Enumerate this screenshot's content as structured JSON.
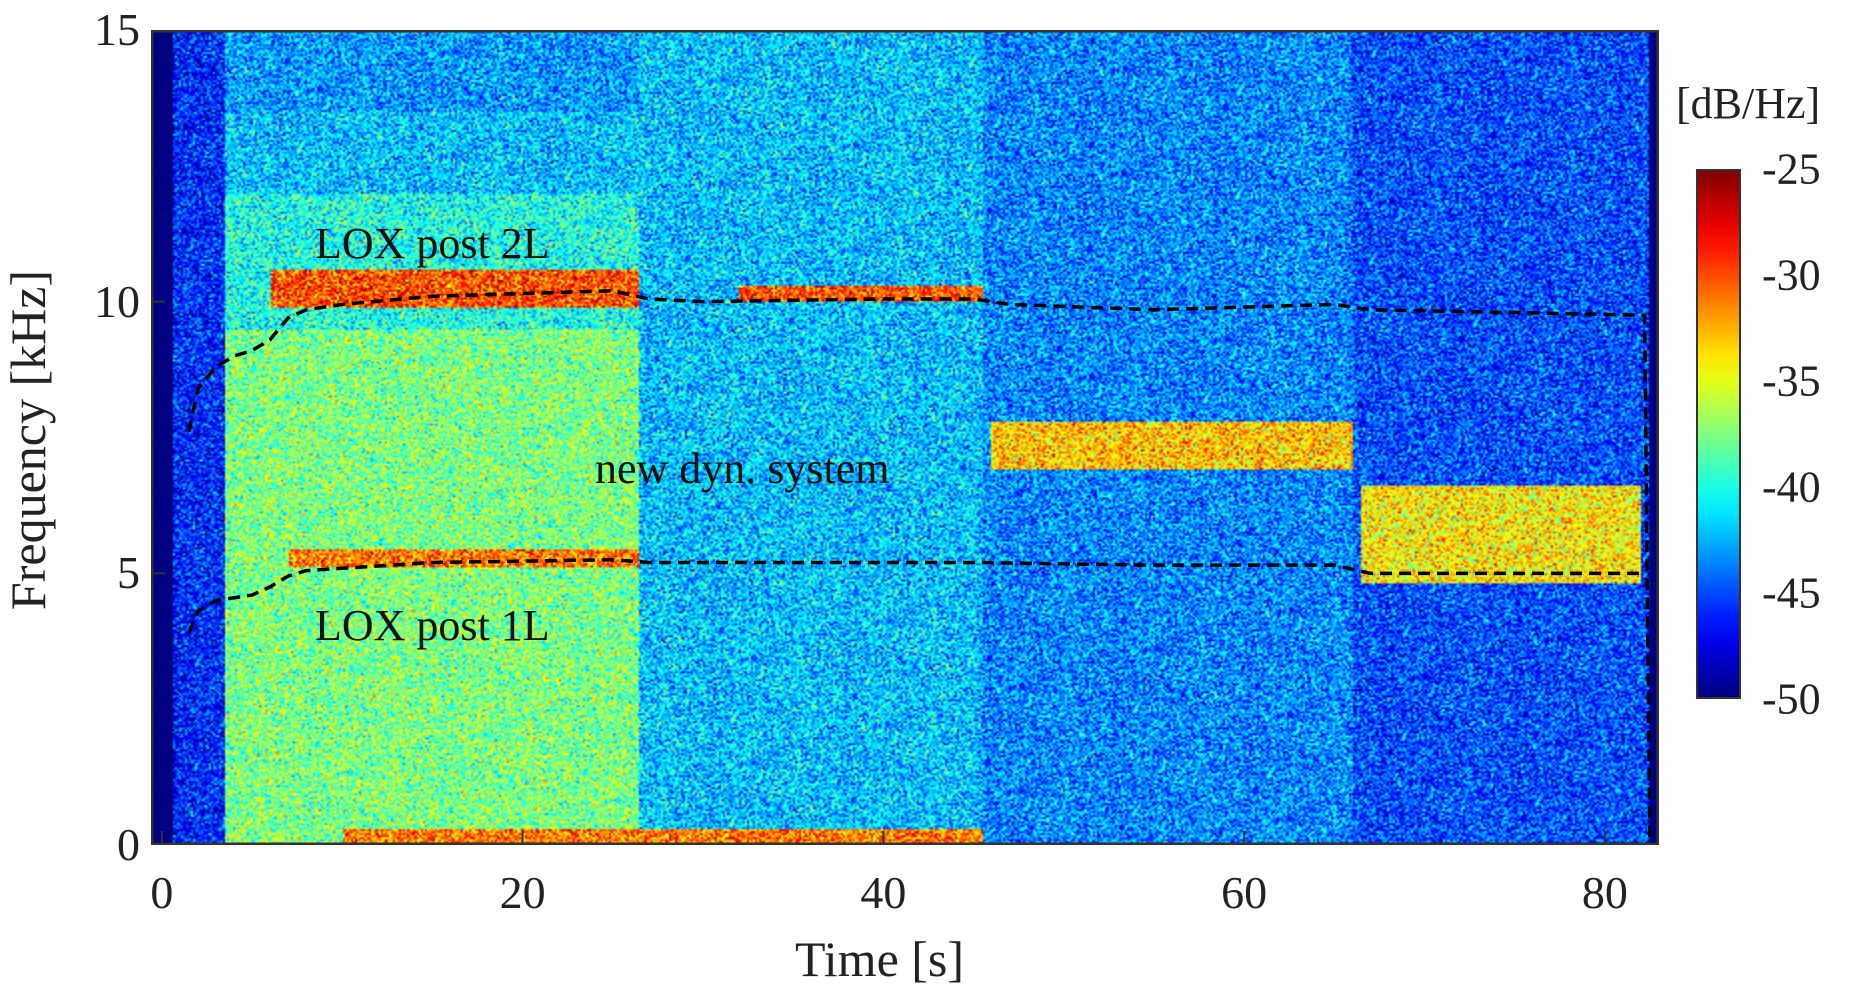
{
  "chart_data": {
    "type": "heatmap",
    "title": "",
    "xlabel": "Time [s]",
    "ylabel": "Frequency [kHz]",
    "xlim": [
      -0.6,
      83
    ],
    "ylim": [
      0,
      15
    ],
    "xticks": [
      0,
      20,
      40,
      60,
      80
    ],
    "xtick_labels": [
      "0",
      "20",
      "40",
      "60",
      "80"
    ],
    "yticks": [
      0,
      5,
      10,
      15
    ],
    "ytick_labels": [
      "0",
      "5",
      "10",
      "15"
    ],
    "colorbar": {
      "label": "[dB/Hz]",
      "colormap": "jet",
      "range": [
        -50,
        -25
      ],
      "ticks": [
        -25,
        -30,
        -35,
        -40,
        -45,
        -50
      ],
      "tick_labels": [
        "-25",
        "-30",
        "-35",
        "-40",
        "-45",
        "-50"
      ]
    },
    "series": [
      {
        "name": "LOX post 2L (dashed)",
        "color": "#000000",
        "points": [
          [
            1.5,
            7.6
          ],
          [
            2,
            8.4
          ],
          [
            3,
            8.8
          ],
          [
            4,
            9.0
          ],
          [
            5,
            9.1
          ],
          [
            6,
            9.3
          ],
          [
            7,
            9.7
          ],
          [
            8,
            9.85
          ],
          [
            10,
            9.95
          ],
          [
            15,
            10.1
          ],
          [
            20,
            10.15
          ],
          [
            25,
            10.2
          ],
          [
            27,
            10.05
          ],
          [
            30,
            10.0
          ],
          [
            40,
            10.05
          ],
          [
            45,
            10.05
          ],
          [
            47,
            9.95
          ],
          [
            55,
            9.85
          ],
          [
            65,
            9.95
          ],
          [
            67,
            9.85
          ],
          [
            75,
            9.8
          ],
          [
            82.2,
            9.75
          ],
          [
            82.4,
            3.0
          ],
          [
            82.5,
            0
          ]
        ]
      },
      {
        "name": "LOX post 1L (dashed)",
        "color": "#000000",
        "points": [
          [
            1.5,
            3.9
          ],
          [
            2,
            4.3
          ],
          [
            3,
            4.5
          ],
          [
            5,
            4.6
          ],
          [
            6,
            4.75
          ],
          [
            7,
            4.95
          ],
          [
            8,
            5.05
          ],
          [
            15,
            5.2
          ],
          [
            25,
            5.25
          ],
          [
            27,
            5.2
          ],
          [
            45,
            5.2
          ],
          [
            55,
            5.15
          ],
          [
            65,
            5.15
          ],
          [
            67,
            5.0
          ],
          [
            75,
            5.0
          ],
          [
            82.2,
            5.0
          ]
        ]
      }
    ],
    "annotations": [
      {
        "text": "LOX post 2L",
        "x": 8.5,
        "y": 11.0
      },
      {
        "text": "new dyn. system",
        "x": 24.3,
        "y": 6.9
      },
      {
        "text": "LOX post 1L",
        "x": 8.5,
        "y": 4.0
      }
    ],
    "regions_db": [
      {
        "t": [
          -0.6,
          0.6
        ],
        "level": -50
      },
      {
        "t": [
          0.6,
          3.5
        ],
        "level": -46
      },
      {
        "t": [
          3.5,
          26.5
        ],
        "level": -39
      },
      {
        "t": [
          26.5,
          45.5
        ],
        "level": -42
      },
      {
        "t": [
          45.5,
          66
        ],
        "level": -43.5
      },
      {
        "t": [
          66,
          82.5
        ],
        "level": -45
      },
      {
        "t": [
          82.5,
          83
        ],
        "level": -50
      }
    ],
    "bands_db": [
      {
        "t": [
          6,
          26.5
        ],
        "f": [
          9.9,
          10.6
        ],
        "level": -30
      },
      {
        "t": [
          32,
          45.5
        ],
        "f": [
          10.0,
          10.3
        ],
        "level": -30
      },
      {
        "t": [
          46,
          66
        ],
        "f": [
          6.9,
          7.8
        ],
        "level": -33
      },
      {
        "t": [
          66.5,
          82
        ],
        "f": [
          4.8,
          6.6
        ],
        "level": -34
      },
      {
        "t": [
          7,
          26.5
        ],
        "f": [
          5.1,
          5.45
        ],
        "level": -31
      },
      {
        "t": [
          10,
          45.5
        ],
        "f": [
          0,
          0.3
        ],
        "level": -31
      }
    ]
  }
}
